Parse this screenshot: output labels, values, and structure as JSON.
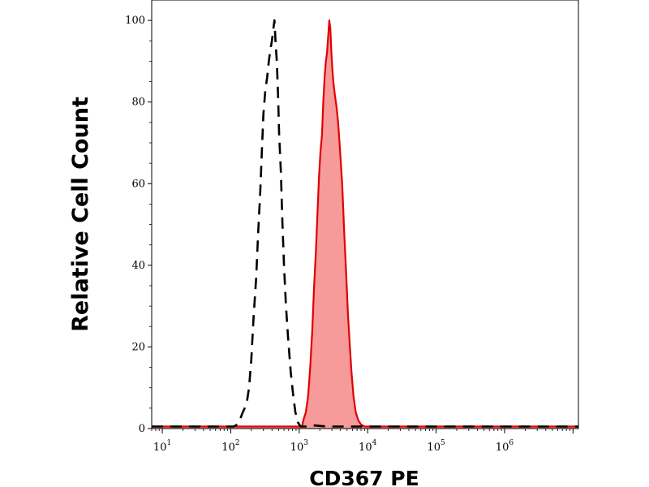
{
  "chart_data": {
    "type": "area",
    "title": "",
    "xlabel": "CD367 PE",
    "ylabel": "Relative Cell Count",
    "x_scale": "log",
    "xlim": [
      7,
      12000000
    ],
    "ylim": [
      0,
      105
    ],
    "x_ticks": [
      {
        "base": "10",
        "exp": "1",
        "value": 10
      },
      {
        "base": "10",
        "exp": "2",
        "value": 100
      },
      {
        "base": "10",
        "exp": "3",
        "value": 1000
      },
      {
        "base": "10",
        "exp": "4",
        "value": 10000
      },
      {
        "base": "10",
        "exp": "5",
        "value": 100000
      },
      {
        "base": "10",
        "exp": "6",
        "value": 1000000
      }
    ],
    "y_ticks": [
      "0",
      "20",
      "40",
      "60",
      "80",
      "100"
    ],
    "grid": false,
    "legend": "none",
    "series": [
      {
        "style": "dashed-outline",
        "color": "#000000",
        "points": [
          [
            7,
            0.5
          ],
          [
            110,
            0.5
          ],
          [
            125,
            1
          ],
          [
            135,
            2
          ],
          [
            150,
            4
          ],
          [
            170,
            6
          ],
          [
            185,
            10
          ],
          [
            200,
            17
          ],
          [
            215,
            27
          ],
          [
            235,
            37
          ],
          [
            250,
            47
          ],
          [
            270,
            58
          ],
          [
            285,
            68
          ],
          [
            300,
            77
          ],
          [
            320,
            83
          ],
          [
            340,
            86
          ],
          [
            360,
            90
          ],
          [
            380,
            93
          ],
          [
            400,
            95
          ],
          [
            420,
            98
          ],
          [
            435,
            100
          ],
          [
            450,
            95
          ],
          [
            470,
            90
          ],
          [
            490,
            82
          ],
          [
            510,
            72
          ],
          [
            540,
            63
          ],
          [
            570,
            50
          ],
          [
            600,
            40
          ],
          [
            640,
            30
          ],
          [
            690,
            22
          ],
          [
            750,
            14
          ],
          [
            820,
            8
          ],
          [
            880,
            4
          ],
          [
            960,
            1.5
          ],
          [
            1050,
            0.5
          ],
          [
            1250,
            0.5
          ],
          [
            1600,
            0.8
          ],
          [
            2500,
            0.5
          ],
          [
            12000000,
            0.5
          ]
        ]
      },
      {
        "style": "filled",
        "color": "#e00000",
        "fill": "#f79a9a",
        "points": [
          [
            7,
            0.5
          ],
          [
            1100,
            0.5
          ],
          [
            1150,
            2
          ],
          [
            1250,
            4
          ],
          [
            1350,
            8
          ],
          [
            1450,
            15
          ],
          [
            1550,
            24
          ],
          [
            1650,
            35
          ],
          [
            1750,
            43
          ],
          [
            1850,
            53
          ],
          [
            1950,
            62
          ],
          [
            2050,
            68
          ],
          [
            2150,
            72
          ],
          [
            2250,
            80
          ],
          [
            2350,
            86
          ],
          [
            2450,
            90
          ],
          [
            2550,
            92
          ],
          [
            2650,
            96
          ],
          [
            2750,
            100
          ],
          [
            2850,
            98
          ],
          [
            2950,
            92
          ],
          [
            3050,
            88
          ],
          [
            3150,
            85
          ],
          [
            3300,
            82
          ],
          [
            3500,
            79
          ],
          [
            3700,
            75
          ],
          [
            3950,
            68
          ],
          [
            4250,
            60
          ],
          [
            4550,
            48
          ],
          [
            4850,
            38
          ],
          [
            5150,
            28
          ],
          [
            5450,
            21
          ],
          [
            5800,
            14
          ],
          [
            6200,
            8
          ],
          [
            6700,
            4
          ],
          [
            7300,
            2
          ],
          [
            8000,
            1
          ],
          [
            9000,
            0.5
          ],
          [
            12000000,
            0.5
          ]
        ]
      }
    ]
  }
}
